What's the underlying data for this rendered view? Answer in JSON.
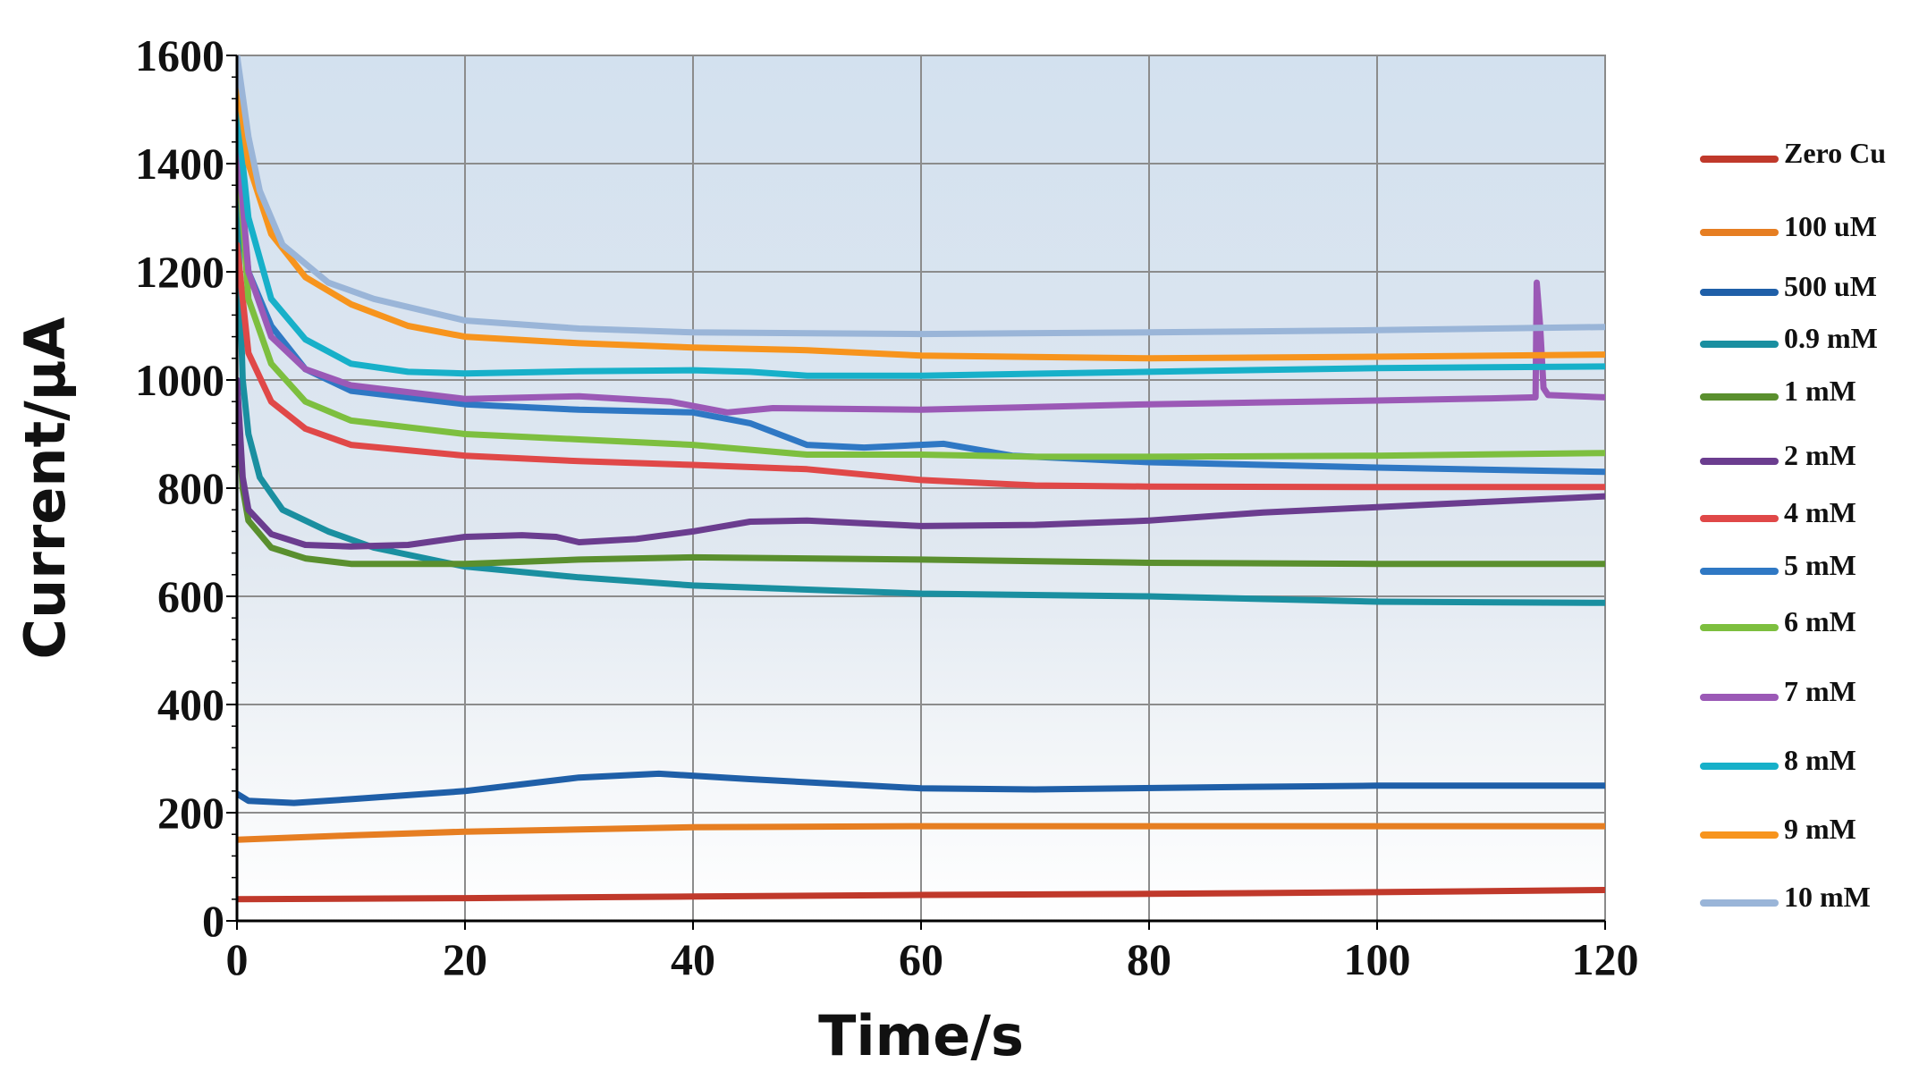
{
  "chart_data": {
    "type": "line",
    "xlabel": "Time/s",
    "ylabel": "Current/μA",
    "xlim": [
      0,
      120
    ],
    "ylim": [
      0,
      1600
    ],
    "x_ticks": [
      "0",
      "20",
      "40",
      "60",
      "80",
      "100",
      "120"
    ],
    "y_ticks": [
      "0",
      "200",
      "400",
      "600",
      "800",
      "1000",
      "1200",
      "1400",
      "1600"
    ],
    "grid": true,
    "legend_position": "right",
    "series": [
      {
        "name": "Zero Cu",
        "color": "#c0392b",
        "points": [
          [
            0,
            40
          ],
          [
            20,
            42
          ],
          [
            40,
            45
          ],
          [
            60,
            48
          ],
          [
            80,
            50
          ],
          [
            100,
            53
          ],
          [
            120,
            57
          ]
        ]
      },
      {
        "name": "100 uM",
        "color": "#e67e22",
        "points": [
          [
            0,
            150
          ],
          [
            10,
            158
          ],
          [
            20,
            165
          ],
          [
            40,
            173
          ],
          [
            60,
            175
          ],
          [
            80,
            175
          ],
          [
            100,
            175
          ],
          [
            120,
            175
          ]
        ]
      },
      {
        "name": "500 uM",
        "color": "#1f5fa8",
        "points": [
          [
            0,
            235
          ],
          [
            1,
            222
          ],
          [
            5,
            218
          ],
          [
            10,
            225
          ],
          [
            20,
            240
          ],
          [
            30,
            265
          ],
          [
            37,
            272
          ],
          [
            45,
            262
          ],
          [
            60,
            245
          ],
          [
            70,
            243
          ],
          [
            90,
            248
          ],
          [
            100,
            250
          ],
          [
            120,
            250
          ]
        ]
      },
      {
        "name": "0.9 mM",
        "color": "#1a8fa0",
        "points": [
          [
            0,
            1350
          ],
          [
            0.5,
            1000
          ],
          [
            1,
            900
          ],
          [
            2,
            820
          ],
          [
            4,
            760
          ],
          [
            8,
            720
          ],
          [
            12,
            690
          ],
          [
            20,
            655
          ],
          [
            30,
            635
          ],
          [
            40,
            620
          ],
          [
            60,
            605
          ],
          [
            80,
            600
          ],
          [
            100,
            590
          ],
          [
            120,
            588
          ]
        ]
      },
      {
        "name": "1 mM",
        "color": "#5a8f2e",
        "points": [
          [
            0,
            960
          ],
          [
            0.5,
            800
          ],
          [
            1,
            740
          ],
          [
            3,
            690
          ],
          [
            6,
            670
          ],
          [
            10,
            660
          ],
          [
            20,
            660
          ],
          [
            30,
            668
          ],
          [
            40,
            672
          ],
          [
            60,
            668
          ],
          [
            80,
            662
          ],
          [
            100,
            660
          ],
          [
            120,
            660
          ]
        ]
      },
      {
        "name": "2 mM",
        "color": "#6b3d8f",
        "points": [
          [
            0,
            1000
          ],
          [
            0.5,
            820
          ],
          [
            1,
            760
          ],
          [
            3,
            715
          ],
          [
            6,
            695
          ],
          [
            10,
            692
          ],
          [
            15,
            695
          ],
          [
            20,
            710
          ],
          [
            25,
            713
          ],
          [
            28,
            710
          ],
          [
            30,
            700
          ],
          [
            35,
            706
          ],
          [
            40,
            720
          ],
          [
            45,
            738
          ],
          [
            50,
            740
          ],
          [
            60,
            730
          ],
          [
            70,
            732
          ],
          [
            80,
            740
          ],
          [
            90,
            755
          ],
          [
            100,
            765
          ],
          [
            110,
            775
          ],
          [
            120,
            785
          ]
        ]
      },
      {
        "name": "4 mM",
        "color": "#e04848",
        "points": [
          [
            0,
            1250
          ],
          [
            1,
            1050
          ],
          [
            3,
            960
          ],
          [
            6,
            910
          ],
          [
            10,
            880
          ],
          [
            20,
            860
          ],
          [
            30,
            850
          ],
          [
            40,
            843
          ],
          [
            50,
            835
          ],
          [
            60,
            815
          ],
          [
            70,
            805
          ],
          [
            80,
            803
          ],
          [
            100,
            802
          ],
          [
            120,
            802
          ]
        ]
      },
      {
        "name": "5 mM",
        "color": "#2f78c4",
        "points": [
          [
            0,
            1400
          ],
          [
            1,
            1200
          ],
          [
            3,
            1100
          ],
          [
            6,
            1020
          ],
          [
            10,
            980
          ],
          [
            20,
            955
          ],
          [
            30,
            945
          ],
          [
            40,
            940
          ],
          [
            45,
            920
          ],
          [
            50,
            880
          ],
          [
            55,
            875
          ],
          [
            62,
            882
          ],
          [
            68,
            860
          ],
          [
            80,
            848
          ],
          [
            100,
            838
          ],
          [
            120,
            830
          ]
        ]
      },
      {
        "name": "6 mM",
        "color": "#7dbf3f",
        "points": [
          [
            0,
            1450
          ],
          [
            1,
            1150
          ],
          [
            3,
            1030
          ],
          [
            6,
            960
          ],
          [
            10,
            925
          ],
          [
            20,
            900
          ],
          [
            30,
            890
          ],
          [
            40,
            880
          ],
          [
            50,
            862
          ],
          [
            60,
            862
          ],
          [
            70,
            858
          ],
          [
            80,
            858
          ],
          [
            100,
            860
          ],
          [
            120,
            865
          ]
        ]
      },
      {
        "name": "7 mM",
        "color": "#9b59b6",
        "points": [
          [
            0,
            1450
          ],
          [
            1,
            1200
          ],
          [
            3,
            1080
          ],
          [
            6,
            1020
          ],
          [
            10,
            990
          ],
          [
            20,
            965
          ],
          [
            30,
            970
          ],
          [
            38,
            960
          ],
          [
            43,
            940
          ],
          [
            47,
            948
          ],
          [
            60,
            945
          ],
          [
            80,
            955
          ],
          [
            100,
            962
          ],
          [
            110,
            966
          ],
          [
            113.9,
            968
          ],
          [
            114,
            1180
          ],
          [
            114.3,
            1100
          ],
          [
            114.6,
            985
          ],
          [
            115,
            972
          ],
          [
            120,
            968
          ]
        ]
      },
      {
        "name": "8 mM",
        "color": "#17b0c9",
        "points": [
          [
            0,
            1500
          ],
          [
            1,
            1300
          ],
          [
            3,
            1150
          ],
          [
            6,
            1075
          ],
          [
            10,
            1030
          ],
          [
            15,
            1015
          ],
          [
            20,
            1012
          ],
          [
            30,
            1016
          ],
          [
            40,
            1018
          ],
          [
            45,
            1015
          ],
          [
            50,
            1008
          ],
          [
            60,
            1008
          ],
          [
            80,
            1015
          ],
          [
            100,
            1022
          ],
          [
            120,
            1025
          ]
        ]
      },
      {
        "name": "9 mM",
        "color": "#f7941d",
        "points": [
          [
            0,
            1560
          ],
          [
            1,
            1400
          ],
          [
            3,
            1270
          ],
          [
            6,
            1190
          ],
          [
            10,
            1140
          ],
          [
            15,
            1100
          ],
          [
            20,
            1080
          ],
          [
            30,
            1068
          ],
          [
            40,
            1060
          ],
          [
            50,
            1055
          ],
          [
            60,
            1045
          ],
          [
            80,
            1040
          ],
          [
            100,
            1043
          ],
          [
            120,
            1047
          ]
        ]
      },
      {
        "name": "10 mM",
        "color": "#9ab5d8",
        "points": [
          [
            0,
            1600
          ],
          [
            1,
            1450
          ],
          [
            2,
            1350
          ],
          [
            4,
            1250
          ],
          [
            8,
            1180
          ],
          [
            12,
            1150
          ],
          [
            20,
            1110
          ],
          [
            30,
            1095
          ],
          [
            40,
            1088
          ],
          [
            60,
            1085
          ],
          [
            80,
            1088
          ],
          [
            100,
            1092
          ],
          [
            120,
            1098
          ]
        ]
      }
    ]
  }
}
